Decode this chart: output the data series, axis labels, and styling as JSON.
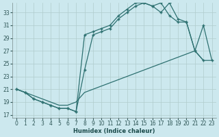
{
  "xlabel": "Humidex (Indice chaleur)",
  "bg_color": "#cce8ee",
  "grid_color": "#b0cccc",
  "line_color": "#2d7070",
  "xlim": [
    -0.5,
    23.5
  ],
  "ylim": [
    16.5,
    34.5
  ],
  "xticks": [
    0,
    1,
    2,
    3,
    4,
    5,
    6,
    7,
    8,
    9,
    10,
    11,
    12,
    13,
    14,
    15,
    16,
    17,
    18,
    19,
    20,
    21,
    22,
    23
  ],
  "yticks": [
    17,
    19,
    21,
    23,
    25,
    27,
    29,
    31,
    33
  ],
  "line_a_x": [
    0,
    1,
    2,
    3,
    4,
    5,
    6,
    7,
    8,
    9,
    10,
    11,
    12,
    13,
    14,
    15,
    16,
    17,
    18,
    19,
    20,
    21,
    22,
    23
  ],
  "line_a_y": [
    21.0,
    20.5,
    20.0,
    19.5,
    19.0,
    18.5,
    18.5,
    19.0,
    20.5,
    21.0,
    21.5,
    22.0,
    22.5,
    23.0,
    23.5,
    24.0,
    24.5,
    25.0,
    25.5,
    26.0,
    26.5,
    27.0,
    25.5,
    25.5
  ],
  "line_b_x": [
    0,
    1,
    2,
    3,
    4,
    5,
    6,
    7,
    8,
    9,
    10,
    11,
    12,
    13,
    14,
    15,
    16,
    17,
    18,
    19,
    20,
    21,
    22
  ],
  "line_b_y": [
    21.0,
    20.5,
    19.5,
    19.0,
    18.5,
    18.0,
    18.0,
    17.5,
    29.5,
    30.0,
    30.5,
    31.0,
    32.5,
    33.5,
    34.5,
    34.5,
    34.0,
    34.5,
    32.5,
    31.5,
    31.5,
    27.0,
    25.5
  ],
  "line_c_x": [
    0,
    1,
    2,
    3,
    4,
    5,
    6,
    7,
    8,
    9,
    10,
    11,
    12,
    13,
    14,
    15,
    16,
    17,
    18,
    19,
    20,
    21,
    22,
    23
  ],
  "line_c_y": [
    21.0,
    20.5,
    19.5,
    19.0,
    18.5,
    18.0,
    18.0,
    17.5,
    24.0,
    29.5,
    30.0,
    30.5,
    32.0,
    33.0,
    34.0,
    34.5,
    34.0,
    33.0,
    34.5,
    32.0,
    31.5,
    27.0,
    31.0,
    25.5
  ]
}
